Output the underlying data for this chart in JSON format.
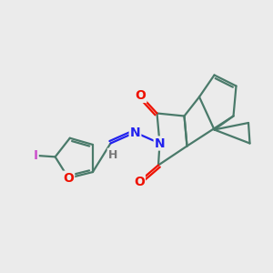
{
  "bg_color": "#ebebeb",
  "bond_color": "#4a7a6a",
  "bond_width": 1.6,
  "atom_colors": {
    "O": "#ee1100",
    "N": "#2222ee",
    "I": "#cc55cc",
    "H": "#777777",
    "C": "#4a7a6a"
  },
  "font_size": 10
}
